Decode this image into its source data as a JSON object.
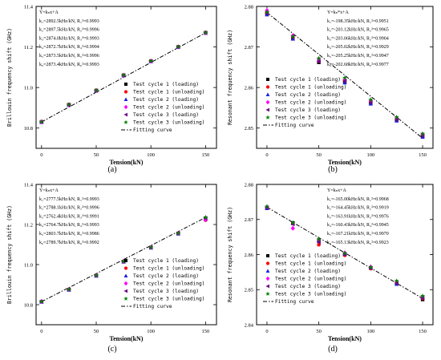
{
  "chart_data": [
    {
      "type": "scatter",
      "panel_label": "(a)",
      "xlabel": "Tension(kN)",
      "ylabel": "Brillouin frequency shift (GHz)",
      "xlim": [
        -5,
        160
      ],
      "ylim": [
        10.7,
        11.4
      ],
      "xticks": [
        "0",
        "50",
        "100",
        "150"
      ],
      "yticks": [
        "10.8",
        "11.0",
        "11.2",
        "11.4"
      ],
      "x": [
        0,
        25,
        50,
        75,
        100,
        125,
        150
      ],
      "fit": {
        "x": [
          0,
          150
        ],
        "y": [
          10.83,
          11.27
        ]
      },
      "annotation": [
        "Y=kₙx+A",
        "k₁=2892.5kHz/kN, R₁²=0.9993",
        "k₂=2897.5kHz/kN, R₂²=0.9996",
        "k₃=2874.0kHz/kN, R₃²=0.9993",
        "k₄=2872.7kHz/kN, R₄²=0.9994",
        "k₅=2873.5kHz/kN, R₅²=0.9996",
        "k₆=2873.4kHz/kN, R₆²=0.9993"
      ],
      "series": [
        {
          "name": "Test cycle 1  (loading)",
          "y": [
            10.83,
            10.915,
            10.985,
            11.06,
            11.13,
            11.2,
            11.27
          ]
        },
        {
          "name": "Test cycle 1  (unloading)",
          "y": [
            10.832,
            10.916,
            10.986,
            11.061,
            11.131,
            11.201,
            11.271
          ]
        },
        {
          "name": "Test cycle 2  (loading)",
          "y": [
            10.829,
            10.914,
            10.984,
            11.059,
            11.129,
            11.199,
            11.269
          ]
        },
        {
          "name": "Test cycle 2  (unloading)",
          "y": [
            10.831,
            10.915,
            10.985,
            11.06,
            11.13,
            11.2,
            11.27
          ]
        },
        {
          "name": "Test cycle 3  (loading)",
          "y": [
            10.83,
            10.914,
            10.985,
            11.06,
            11.13,
            11.2,
            11.27
          ]
        },
        {
          "name": "Test cycle 3  (unloading)",
          "y": [
            10.831,
            10.916,
            10.986,
            11.061,
            11.131,
            11.201,
            11.271
          ]
        }
      ],
      "legend_fit": "Fitting curve",
      "legend_position": "bottom-right",
      "annotation_position": "top-left"
    },
    {
      "type": "scatter",
      "panel_label": "(b)",
      "xlabel": "Tension(kN)",
      "ylabel": "Resonant frequency shift (GHz)",
      "xlim": [
        -10,
        160
      ],
      "ylim": [
        2.845,
        2.88
      ],
      "xticks": [
        "0",
        "50",
        "100",
        "150"
      ],
      "yticks": [
        "2.85",
        "2.86",
        "2.87",
        "2.88"
      ],
      "x": [
        0,
        25,
        50,
        75,
        100,
        125,
        150
      ],
      "fit": {
        "x": [
          0,
          150
        ],
        "y": [
          2.8785,
          2.8475
        ]
      },
      "annotation": [
        "Y=kₙ*x+A",
        "k₁=-198.35kHz/kN, R₁²=0.9951",
        "k₂=-203.12kHz/kN, R₂²=0.9965",
        "k₃=-203.06kHz/kN, R₃²=0.9904",
        "k₄=-205.02kHz/kN, R₄²=0.9929",
        "k₅=-205.25kHz/kN, R₅²=0.9947",
        "k₆=-202.68kHz/kN, R₆²=0.9977"
      ],
      "series": [
        {
          "name": "Test cycle 1  (loading)",
          "y": [
            2.8782,
            2.8722,
            2.8662,
            2.8615,
            2.8562,
            2.852,
            2.848
          ]
        },
        {
          "name": "Test cycle 1  (unloading)",
          "y": [
            2.8785,
            2.8725,
            2.8665,
            2.8618,
            2.8565,
            2.8523,
            2.8483
          ]
        },
        {
          "name": "Test cycle 2  (loading)",
          "y": [
            2.878,
            2.872,
            2.8668,
            2.8612,
            2.856,
            2.8518,
            2.8478
          ]
        },
        {
          "name": "Test cycle 2  (unloading)",
          "y": [
            2.879,
            2.8728,
            2.867,
            2.862,
            2.8568,
            2.8525,
            2.8485
          ]
        },
        {
          "name": "Test cycle 3  (loading)",
          "y": [
            2.8783,
            2.8723,
            2.8664,
            2.8616,
            2.8563,
            2.8521,
            2.8481
          ]
        },
        {
          "name": "Test cycle 3  (unloading)",
          "y": [
            2.8786,
            2.8726,
            2.8672,
            2.8624,
            2.857,
            2.8527,
            2.8486
          ]
        }
      ],
      "legend_fit": "Fitting curve",
      "legend_position": "bottom-left",
      "annotation_position": "top-right"
    },
    {
      "type": "scatter",
      "panel_label": "(c)",
      "xlabel": "Tension(kN)",
      "ylabel": "Brillouin frequency shift (GHz)",
      "xlim": [
        -5,
        160
      ],
      "ylim": [
        10.7,
        11.4
      ],
      "xticks": [
        "0",
        "50",
        "100",
        "150"
      ],
      "yticks": [
        "10.8",
        "11.0",
        "11.2",
        "11.4"
      ],
      "x": [
        0,
        25,
        50,
        75,
        100,
        125,
        150
      ],
      "fit": {
        "x": [
          0,
          150
        ],
        "y": [
          10.815,
          11.235
        ]
      },
      "annotation": [
        "Y=kₙx+A",
        "k₁=2777.5kHz/kN, R₁²=0.9993",
        "k₂=2788.1kHz/kN, R₂²=0.9996",
        "k₃=2762.4kHz/kN, R₃²=0.9991",
        "k₄=2764.7kHz/kN, R₄²=0.9993",
        "k₅=2803.7kHz/kN, R₅²=0.9986",
        "k₆=2789.7kHz/kN, R₆²=0.9992"
      ],
      "series": [
        {
          "name": "Test cycle 1  (loading)",
          "y": [
            10.815,
            10.875,
            10.945,
            11.015,
            11.085,
            11.155,
            11.23
          ]
        },
        {
          "name": "Test cycle 1  (unloading)",
          "y": [
            10.816,
            10.876,
            10.946,
            11.016,
            11.086,
            11.156,
            11.222
          ]
        },
        {
          "name": "Test cycle 2  (loading)",
          "y": [
            10.814,
            10.874,
            10.944,
            11.014,
            11.084,
            11.154,
            11.228
          ]
        },
        {
          "name": "Test cycle 2  (unloading)",
          "y": [
            10.816,
            10.876,
            10.946,
            11.016,
            11.086,
            11.156,
            11.224
          ]
        },
        {
          "name": "Test cycle 3  (loading)",
          "y": [
            10.815,
            10.875,
            10.945,
            11.015,
            11.085,
            11.155,
            11.232
          ]
        },
        {
          "name": "Test cycle 3  (unloading)",
          "y": [
            10.816,
            10.876,
            10.946,
            11.016,
            11.086,
            11.156,
            11.236
          ]
        }
      ],
      "legend_fit": "Fitting curve",
      "legend_position": "bottom-right",
      "annotation_position": "top-left"
    },
    {
      "type": "scatter",
      "panel_label": "(d)",
      "xlabel": "Tension(kN)",
      "ylabel": "Resonant frequency shift (GHz)",
      "xlim": [
        -10,
        160
      ],
      "ylim": [
        2.84,
        2.88
      ],
      "xticks": [
        "0",
        "50",
        "100",
        "150"
      ],
      "yticks": [
        "2.84",
        "2.85",
        "2.86",
        "2.87",
        "2.88"
      ],
      "x": [
        0,
        25,
        50,
        75,
        100,
        125,
        150
      ],
      "fit": {
        "x": [
          0,
          150
        ],
        "y": [
          2.8735,
          2.8475
        ]
      },
      "annotation": [
        "Y=kₙx+A",
        "k₁=-165.00kHz/kN, R₁²=0.9968",
        "k₂=-164.45kHz/kN, R₂²=0.9919",
        "k₃=-163.91kHz/kN, R₃²=0.9976",
        "k₄=-160.43kHz/kN, R₄²=0.9945",
        "k₅=-167.21kHz/kN, R₅²=0.9970",
        "k₆=-165.13kHz/kN, R₆²=0.9923"
      ],
      "series": [
        {
          "name": "Test cycle 1  (loading)",
          "y": [
            2.8733,
            2.869,
            2.864,
            2.86,
            2.8562,
            2.8518,
            2.8472
          ]
        },
        {
          "name": "Test cycle 1  (unloading)",
          "y": [
            2.8735,
            2.8688,
            2.8628,
            2.8598,
            2.856,
            2.852,
            2.8475
          ]
        },
        {
          "name": "Test cycle 2  (loading)",
          "y": [
            2.8732,
            2.8689,
            2.8638,
            2.8602,
            2.8563,
            2.8516,
            2.8478
          ]
        },
        {
          "name": "Test cycle 2  (unloading)",
          "y": [
            2.8736,
            2.8675,
            2.8642,
            2.8605,
            2.8565,
            2.8522,
            2.848
          ]
        },
        {
          "name": "Test cycle 3  (loading)",
          "y": [
            2.8734,
            2.8687,
            2.8636,
            2.8601,
            2.8561,
            2.8519,
            2.8476
          ]
        },
        {
          "name": "Test cycle 3  (unloading)",
          "y": [
            2.8737,
            2.8691,
            2.8644,
            2.8604,
            2.8564,
            2.8525,
            2.8482
          ]
        }
      ],
      "legend_fit": "Fitting curve",
      "legend_position": "bottom-left",
      "annotation_position": "top-right"
    }
  ],
  "marker_styles": [
    {
      "shape": "square",
      "color": "#000000"
    },
    {
      "shape": "circle",
      "color": "#ff0000"
    },
    {
      "shape": "triangle-up",
      "color": "#1f1fe0"
    },
    {
      "shape": "diamond",
      "color": "#ff00ff"
    },
    {
      "shape": "triangle-left",
      "color": "#6a0d84"
    },
    {
      "shape": "star",
      "color": "#008000"
    }
  ]
}
